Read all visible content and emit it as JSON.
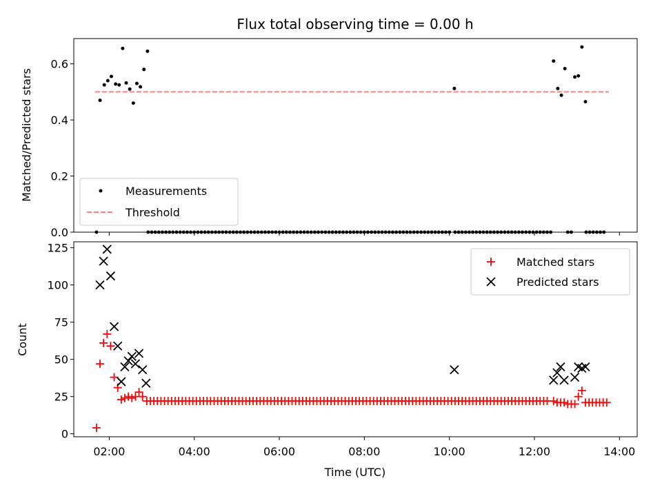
{
  "chart_data": [
    {
      "type": "scatter",
      "title": "Flux total observing time = 0.00 h",
      "xlabel": "",
      "ylabel": "Matched/Predicted stars",
      "ylim": [
        0,
        0.69
      ],
      "yticks": [
        "0.0",
        "0.2",
        "0.4",
        "0.6"
      ],
      "xlim": [
        "01:10",
        "14:25"
      ],
      "legend": {
        "placement": "lower-left",
        "entries": [
          "Measurements",
          "Threshold"
        ]
      },
      "threshold": {
        "name": "Threshold",
        "y": 0.5,
        "x_start": "01:40",
        "x_end": "13:45",
        "color": "#ff7f7f"
      },
      "series": [
        {
          "name": "Measurements",
          "marker": "dot",
          "color": "#000000",
          "points": [
            [
              "01:42",
              0.0
            ],
            [
              "01:47",
              0.47
            ],
            [
              "01:53",
              0.525
            ],
            [
              "01:58",
              0.54
            ],
            [
              "02:03",
              0.555
            ],
            [
              "02:09",
              0.528
            ],
            [
              "02:14",
              0.525
            ],
            [
              "02:19",
              0.655
            ],
            [
              "02:24",
              0.532
            ],
            [
              "02:29",
              0.51
            ],
            [
              "02:34",
              0.46
            ],
            [
              "02:39",
              0.53
            ],
            [
              "02:44",
              0.518
            ],
            [
              "02:49",
              0.58
            ],
            [
              "02:54",
              0.645
            ],
            [
              "10:07",
              0.512
            ],
            [
              "12:27",
              0.61
            ],
            [
              "12:33",
              0.512
            ],
            [
              "12:38",
              0.488
            ],
            [
              "12:43",
              0.583
            ],
            [
              "12:57",
              0.553
            ],
            [
              "13:02",
              0.557
            ],
            [
              "13:07",
              0.66
            ],
            [
              "13:12",
              0.465
            ]
          ],
          "zero_runs": [
            {
              "start": "02:55",
              "end": "10:01",
              "step_min": 5
            },
            {
              "start": "10:08",
              "end": "12:23",
              "step_min": 5
            },
            {
              "start": "12:47",
              "end": "12:53",
              "step_min": 5
            },
            {
              "start": "13:13",
              "end": "13:40",
              "step_min": 5
            }
          ]
        }
      ]
    },
    {
      "type": "scatter",
      "title": "",
      "xlabel": "Time (UTC)",
      "ylabel": "Count",
      "ylim": [
        -2,
        129
      ],
      "yticks": [
        "0",
        "25",
        "50",
        "75",
        "100",
        "125"
      ],
      "xticks": [
        "02:00",
        "04:00",
        "06:00",
        "08:00",
        "10:00",
        "12:00",
        "14:00"
      ],
      "xlim": [
        "01:10",
        "14:25"
      ],
      "legend": {
        "placement": "upper-right",
        "entries": [
          "Matched stars",
          "Predicted stars"
        ]
      },
      "series": [
        {
          "name": "Matched stars",
          "marker": "plus",
          "color": "#ff0000",
          "points": [
            [
              "01:42",
              4
            ],
            [
              "01:47",
              47
            ],
            [
              "01:52",
              61
            ],
            [
              "01:57",
              67
            ],
            [
              "02:02",
              59
            ],
            [
              "02:07",
              38
            ],
            [
              "02:12",
              31
            ],
            [
              "02:17",
              23
            ],
            [
              "02:22",
              24
            ],
            [
              "02:27",
              25
            ],
            [
              "02:32",
              24
            ],
            [
              "02:37",
              25
            ],
            [
              "02:42",
              28
            ],
            [
              "02:47",
              25
            ],
            [
              "12:27",
              22
            ],
            [
              "12:32",
              21
            ],
            [
              "12:37",
              21
            ],
            [
              "12:42",
              21
            ],
            [
              "12:47",
              20
            ],
            [
              "12:52",
              20
            ],
            [
              "12:57",
              20
            ],
            [
              "13:02",
              25
            ],
            [
              "13:07",
              29
            ],
            [
              "13:12",
              21
            ]
          ],
          "flat_runs": [
            {
              "start": "02:53",
              "end": "12:22",
              "step_min": 5,
              "value": 22
            },
            {
              "start": "13:17",
              "end": "13:42",
              "step_min": 5,
              "value": 21
            }
          ]
        },
        {
          "name": "Predicted stars",
          "marker": "x",
          "color": "#000000",
          "points": [
            [
              "01:47",
              100
            ],
            [
              "01:52",
              116
            ],
            [
              "01:57",
              124
            ],
            [
              "02:02",
              106
            ],
            [
              "02:07",
              72
            ],
            [
              "02:12",
              59
            ],
            [
              "02:17",
              35
            ],
            [
              "02:22",
              45
            ],
            [
              "02:27",
              49
            ],
            [
              "02:32",
              52
            ],
            [
              "02:37",
              47
            ],
            [
              "02:42",
              54
            ],
            [
              "02:47",
              43
            ],
            [
              "02:52",
              34
            ],
            [
              "10:07",
              43
            ],
            [
              "12:27",
              36
            ],
            [
              "12:32",
              41
            ],
            [
              "12:37",
              45
            ],
            [
              "12:42",
              36
            ],
            [
              "12:57",
              38
            ],
            [
              "13:02",
              45
            ],
            [
              "13:07",
              44
            ],
            [
              "13:12",
              45
            ]
          ]
        }
      ]
    }
  ]
}
